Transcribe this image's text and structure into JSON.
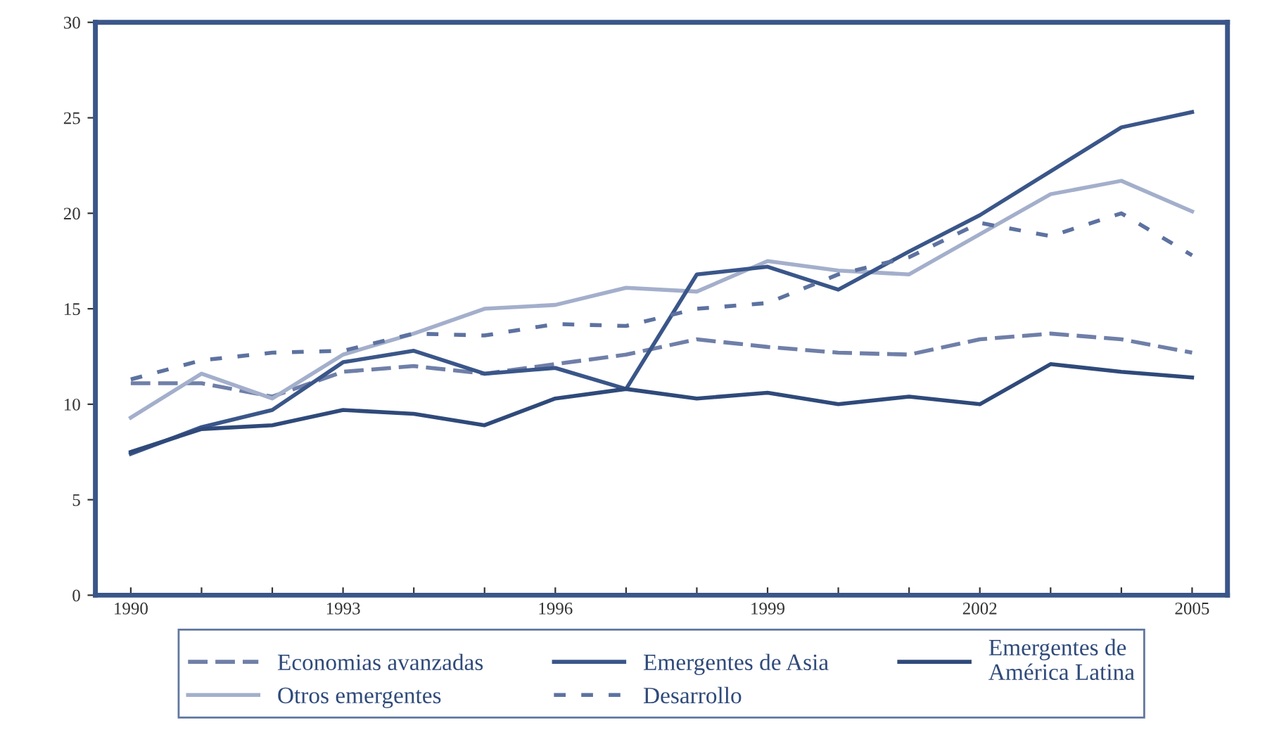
{
  "chart_data": {
    "type": "line",
    "x": [
      1990,
      1991,
      1992,
      1993,
      1994,
      1995,
      1996,
      1997,
      1998,
      1999,
      2000,
      2001,
      2002,
      2003,
      2004,
      2005
    ],
    "series": [
      {
        "name": "Economias avanzadas",
        "color": "#6f7fa8",
        "line_style": "dashed",
        "values": [
          11.1,
          11.1,
          10.4,
          11.7,
          12.0,
          11.6,
          12.1,
          12.6,
          13.4,
          13.0,
          12.7,
          12.6,
          13.4,
          13.7,
          13.4,
          12.7
        ]
      },
      {
        "name": "Otros emergentes",
        "color": "#a3afcb",
        "line_style": "solid",
        "values": [
          9.3,
          11.6,
          10.3,
          12.6,
          13.7,
          15.0,
          15.2,
          16.1,
          15.9,
          17.5,
          17.0,
          16.8,
          18.9,
          21.0,
          21.7,
          20.1
        ]
      },
      {
        "name": "Emergentes de Asia",
        "color": "#3a5689",
        "line_style": "solid",
        "values": [
          7.4,
          8.8,
          9.7,
          12.2,
          12.8,
          11.6,
          11.9,
          10.8,
          16.8,
          17.2,
          16.0,
          18.0,
          19.9,
          22.2,
          24.5,
          25.3
        ]
      },
      {
        "name": "Desarrollo",
        "color": "#5d72a0",
        "line_style": "dotted",
        "values": [
          11.3,
          12.3,
          12.7,
          12.8,
          13.7,
          13.6,
          14.2,
          14.1,
          15.0,
          15.3,
          16.8,
          17.7,
          19.5,
          18.8,
          20.0,
          17.8
        ]
      },
      {
        "name": "Emergentes de\nAmérica Latina",
        "color": "#2f4a7a",
        "line_style": "solid",
        "values": [
          7.5,
          8.7,
          8.9,
          9.7,
          9.5,
          8.9,
          10.3,
          10.8,
          10.3,
          10.6,
          10.0,
          10.4,
          10.0,
          12.1,
          11.7,
          11.4
        ]
      }
    ],
    "xlim": [
      1989.5,
      2005.5
    ],
    "xticks": [
      1990,
      {
        "value": 1991,
        "label": null
      },
      {
        "value": 1992,
        "label": null
      },
      1993,
      {
        "value": 1994,
        "label": null
      },
      {
        "value": 1995,
        "label": null
      },
      1996,
      {
        "value": 1997,
        "label": null
      },
      {
        "value": 1998,
        "label": null
      },
      1999,
      {
        "value": 2000,
        "label": null
      },
      {
        "value": 2001,
        "label": null
      },
      2002,
      {
        "value": 2003,
        "label": null
      },
      {
        "value": 2004,
        "label": null
      },
      2005
    ],
    "ylim": [
      0,
      30
    ],
    "yticks": [
      0,
      5,
      10,
      15,
      20,
      25,
      30
    ],
    "grid": false,
    "legend": "bottom",
    "marker": "none"
  }
}
